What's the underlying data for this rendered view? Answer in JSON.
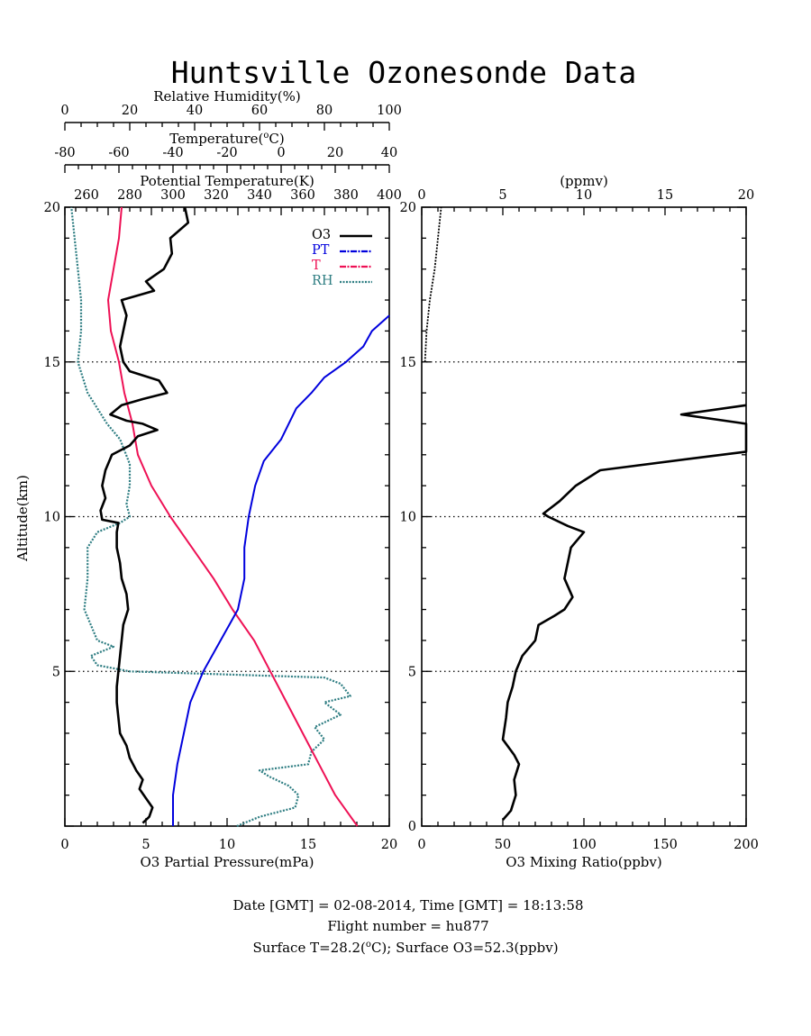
{
  "title": "Huntsville Ozonesonde Data",
  "axes": {
    "rh_label": "Relative Humidity(%)",
    "temp_label": "Temperature(",
    "temp_deg": "o",
    "temp_unit": "C)",
    "pt_label": "Potential Temperature(K)",
    "altitude_label": "Altitude(km)",
    "o3pp_label": "O3 Partial Pressure(mPa)",
    "ppmv_label": "(ppmv)",
    "mixing_label": "O3 Mixing Ratio(ppbv)"
  },
  "ticks": {
    "rh": [
      "0",
      "20",
      "40",
      "60",
      "80",
      "100"
    ],
    "temp": [
      "-80",
      "-60",
      "-40",
      "-20",
      "0",
      "20",
      "40"
    ],
    "pt": [
      "260",
      "280",
      "300",
      "320",
      "340",
      "360",
      "380",
      "400"
    ],
    "o3pp": [
      "0",
      "5",
      "10",
      "15",
      "20"
    ],
    "alt": [
      "20",
      "15",
      "10",
      "5"
    ],
    "alt_right": [
      "20",
      "15",
      "10",
      "5",
      "0"
    ],
    "ppmv": [
      "0",
      "5",
      "10",
      "15",
      "20"
    ],
    "ppbv": [
      "0",
      "50",
      "100",
      "150",
      "200"
    ]
  },
  "legend": [
    "O3",
    "PT",
    "T",
    "RH"
  ],
  "colors": {
    "o3": "#000000",
    "pt": "#0000dd",
    "t": "#ee1155",
    "rh": "#2e7d82"
  },
  "footer": {
    "line1": "Date [GMT] = 02-08-2014,  Time [GMT] = 18:13:58",
    "line2": "Flight number = hu877",
    "line3a": "Surface T=28.2(",
    "line3deg": "o",
    "line3b": "C); Surface O3=52.3(ppbv)"
  },
  "chart_data": [
    {
      "type": "line",
      "title": "Huntsville Ozonesonde Data",
      "ylabel": "Altitude(km)",
      "ylim": [
        0,
        20
      ],
      "grid": "dotted lines at 5, 10, 15 km",
      "legend_position": "top-right",
      "series": [
        {
          "name": "O3",
          "axis": "O3 Partial Pressure(mPa)",
          "xlim": [
            0,
            20
          ],
          "points": [
            [
              4.8,
              0.1
            ],
            [
              5.2,
              0.3
            ],
            [
              5.4,
              0.6
            ],
            [
              5.0,
              0.9
            ],
            [
              4.6,
              1.2
            ],
            [
              4.8,
              1.5
            ],
            [
              4.4,
              1.8
            ],
            [
              4.0,
              2.2
            ],
            [
              3.8,
              2.6
            ],
            [
              3.4,
              3.0
            ],
            [
              3.3,
              3.5
            ],
            [
              3.2,
              4.0
            ],
            [
              3.2,
              4.5
            ],
            [
              3.3,
              5.0
            ],
            [
              3.4,
              5.5
            ],
            [
              3.5,
              6.0
            ],
            [
              3.6,
              6.5
            ],
            [
              3.9,
              7.0
            ],
            [
              3.8,
              7.5
            ],
            [
              3.5,
              8.0
            ],
            [
              3.4,
              8.5
            ],
            [
              3.2,
              9.0
            ],
            [
              3.2,
              9.5
            ],
            [
              3.3,
              9.8
            ],
            [
              2.3,
              9.9
            ],
            [
              2.2,
              10.2
            ],
            [
              2.5,
              10.6
            ],
            [
              2.3,
              11.0
            ],
            [
              2.5,
              11.5
            ],
            [
              2.9,
              12.0
            ],
            [
              4.0,
              12.3
            ],
            [
              4.5,
              12.6
            ],
            [
              5.7,
              12.8
            ],
            [
              4.8,
              13.0
            ],
            [
              3.8,
              13.1
            ],
            [
              2.8,
              13.3
            ],
            [
              3.5,
              13.6
            ],
            [
              4.8,
              13.8
            ],
            [
              6.3,
              14.0
            ],
            [
              5.8,
              14.4
            ],
            [
              4.0,
              14.7
            ],
            [
              3.6,
              15.0
            ],
            [
              3.4,
              15.5
            ],
            [
              3.6,
              16.0
            ],
            [
              3.8,
              16.5
            ],
            [
              3.5,
              17.0
            ],
            [
              5.5,
              17.3
            ],
            [
              5.0,
              17.6
            ],
            [
              6.1,
              18.0
            ],
            [
              6.6,
              18.5
            ],
            [
              6.5,
              19.0
            ],
            [
              7.6,
              19.5
            ],
            [
              7.4,
              20.0
            ]
          ]
        },
        {
          "name": "PT",
          "axis": "Potential Temperature(K)",
          "xlim": [
            250,
            400
          ],
          "points": [
            [
              300,
              0.0
            ],
            [
              300,
              1.0
            ],
            [
              302,
              2.0
            ],
            [
              305,
              3.0
            ],
            [
              308,
              4.0
            ],
            [
              314,
              5.0
            ],
            [
              322,
              6.0
            ],
            [
              330,
              7.0
            ],
            [
              333,
              8.0
            ],
            [
              333,
              9.0
            ],
            [
              335,
              10.0
            ],
            [
              338,
              11.0
            ],
            [
              342,
              11.8
            ],
            [
              350,
              12.5
            ],
            [
              357,
              13.5
            ],
            [
              364,
              14.0
            ],
            [
              370,
              14.5
            ],
            [
              380,
              15.0
            ],
            [
              388,
              15.5
            ],
            [
              392,
              16.0
            ],
            [
              400,
              16.5
            ]
          ]
        },
        {
          "name": "T",
          "axis": "Temperature(oC)",
          "xlim": [
            -80,
            40
          ],
          "points": [
            [
              28.2,
              0.0
            ],
            [
              20,
              1.0
            ],
            [
              14,
              2.0
            ],
            [
              8,
              3.0
            ],
            [
              2,
              4.0
            ],
            [
              -4,
              5.0
            ],
            [
              -10,
              6.0
            ],
            [
              -18,
              7.0
            ],
            [
              -25,
              8.0
            ],
            [
              -33,
              9.0
            ],
            [
              -41,
              10.0
            ],
            [
              -48,
              11.0
            ],
            [
              -53,
              12.0
            ],
            [
              -55,
              13.0
            ],
            [
              -58,
              14.0
            ],
            [
              -60,
              15.0
            ],
            [
              -63,
              16.0
            ],
            [
              -64,
              17.0
            ],
            [
              -62,
              18.0
            ],
            [
              -60,
              19.0
            ],
            [
              -59,
              20.0
            ]
          ]
        },
        {
          "name": "RH",
          "axis": "Relative Humidity(%)",
          "xlim": [
            0,
            100
          ],
          "points": [
            [
              53,
              0.0
            ],
            [
              60,
              0.3
            ],
            [
              71,
              0.6
            ],
            [
              72,
              1.0
            ],
            [
              69,
              1.3
            ],
            [
              63,
              1.6
            ],
            [
              60,
              1.8
            ],
            [
              75,
              2.0
            ],
            [
              76,
              2.4
            ],
            [
              80,
              2.8
            ],
            [
              77,
              3.2
            ],
            [
              85,
              3.6
            ],
            [
              80,
              4.0
            ],
            [
              88,
              4.2
            ],
            [
              85,
              4.6
            ],
            [
              80,
              4.8
            ],
            [
              20,
              5.0
            ],
            [
              10,
              5.2
            ],
            [
              8,
              5.5
            ],
            [
              15,
              5.8
            ],
            [
              10,
              6.0
            ],
            [
              8,
              6.5
            ],
            [
              6,
              7.0
            ],
            [
              7,
              8.0
            ],
            [
              7,
              9.0
            ],
            [
              10,
              9.5
            ],
            [
              17,
              9.8
            ],
            [
              20,
              10.0
            ],
            [
              19,
              10.4
            ],
            [
              20,
              11.0
            ],
            [
              20,
              11.7
            ],
            [
              17,
              12.5
            ],
            [
              13,
              13.0
            ],
            [
              7,
              14.0
            ],
            [
              4,
              15.0
            ],
            [
              5,
              16.0
            ],
            [
              5,
              17.0
            ],
            [
              4,
              18.0
            ],
            [
              3,
              19.0
            ],
            [
              2,
              20.0
            ]
          ]
        }
      ]
    },
    {
      "type": "line",
      "xlabel": "O3 Mixing Ratio(ppbv)",
      "secondary_xlabel": "(ppmv)",
      "xlim": [
        0,
        200
      ],
      "ylim": [
        0,
        20
      ],
      "grid": "dotted lines at 5, 10, 15",
      "series": [
        {
          "name": "O3 mixing ratio",
          "units": "ppbv",
          "points": [
            [
              50,
              0.2
            ],
            [
              55,
              0.5
            ],
            [
              58,
              1.0
            ],
            [
              57,
              1.5
            ],
            [
              60,
              2.0
            ],
            [
              57,
              2.3
            ],
            [
              50,
              2.8
            ],
            [
              52,
              3.5
            ],
            [
              53,
              4.0
            ],
            [
              56,
              4.5
            ],
            [
              58,
              5.0
            ],
            [
              62,
              5.5
            ],
            [
              70,
              6.0
            ],
            [
              72,
              6.5
            ],
            [
              82,
              6.8
            ],
            [
              88,
              7.0
            ],
            [
              93,
              7.4
            ],
            [
              88,
              8.0
            ],
            [
              90,
              8.5
            ],
            [
              92,
              9.0
            ],
            [
              100,
              9.5
            ],
            [
              90,
              9.7
            ],
            [
              78,
              10.0
            ],
            [
              75,
              10.1
            ],
            [
              85,
              10.5
            ],
            [
              95,
              11.0
            ],
            [
              110,
              11.5
            ],
            [
              170,
              11.9
            ],
            [
              200,
              12.1
            ],
            [
              200,
              13.0
            ],
            [
              160,
              13.3
            ],
            [
              200,
              13.6
            ]
          ]
        },
        {
          "name": "O3 mixing ratio (upper)",
          "units": "ppmv",
          "points": [
            [
              0.2,
              15.0
            ],
            [
              0.3,
              16.0
            ],
            [
              0.5,
              17.0
            ],
            [
              0.8,
              18.0
            ],
            [
              1.0,
              19.0
            ],
            [
              1.2,
              20.0
            ]
          ]
        }
      ]
    }
  ]
}
